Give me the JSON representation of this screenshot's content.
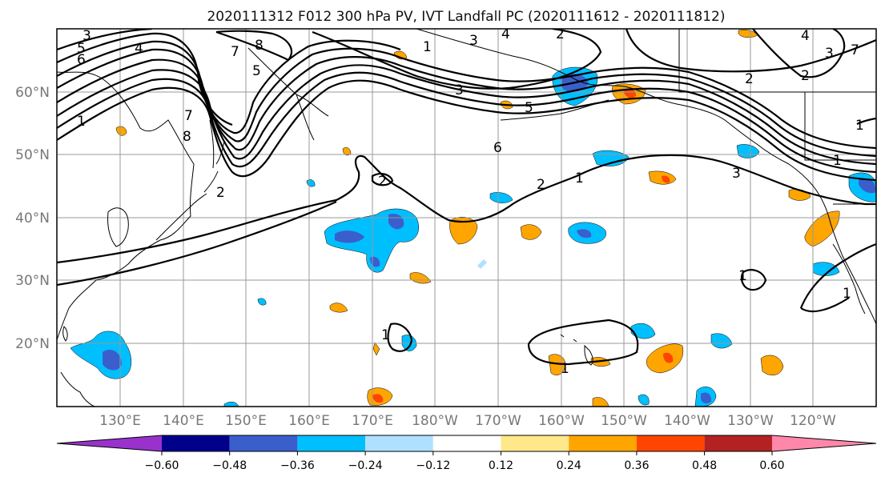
{
  "title": "2020111312 F012 300 hPa PV, IVT Landfall PC (2020111612 - 2020111812)",
  "lat_labels": [
    "60°N",
    "50°N",
    "40°N",
    "30°N",
    "20°N"
  ],
  "lon_labels": [
    "130°E",
    "140°E",
    "150°E",
    "160°E",
    "170°E",
    "180°W",
    "170°W",
    "160°W",
    "150°W",
    "140°W",
    "130°W",
    "120°W"
  ],
  "colorbar": {
    "colors": [
      "#9932cc",
      "#00008b",
      "#3a5fcd",
      "#00bfff",
      "#b0e0ff",
      "#ffffff",
      "#ffe88a",
      "#ffa500",
      "#ff4500",
      "#b22222",
      "#ff88aa"
    ],
    "tick_labels": [
      "−0.60",
      "−0.48",
      "−0.36",
      "−0.24",
      "−0.12",
      "0.12",
      "0.24",
      "0.36",
      "0.48",
      "0.60"
    ]
  },
  "pv_contour_labels": [
    "3",
    "4",
    "5",
    "6",
    "7",
    "8",
    "1",
    "3",
    "4",
    "2",
    "1",
    "3",
    "5",
    "6",
    "2",
    "1",
    "2",
    "1",
    "1",
    "1",
    "1",
    "5",
    "7",
    "8",
    "2",
    "3",
    "1",
    "1",
    "2",
    "3",
    "4",
    "2",
    "7"
  ],
  "colors": {
    "contour": "#000000",
    "coastline": "#000000",
    "grid": "#999999",
    "frame": "#000000"
  }
}
